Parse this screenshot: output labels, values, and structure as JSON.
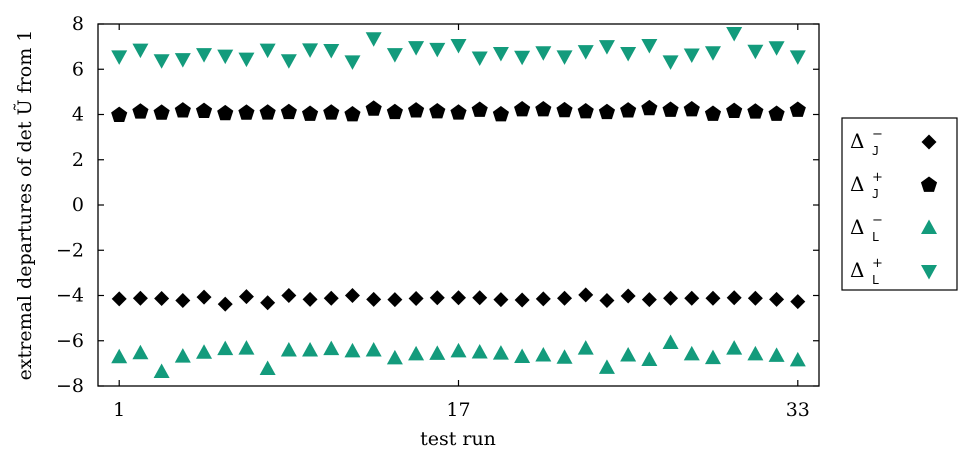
{
  "chart_data": {
    "type": "scatter",
    "xlabel": "test run",
    "ylabel": "extremal departures of det Ũ from 1",
    "xlim": [
      0,
      34
    ],
    "ylim": [
      -8,
      8
    ],
    "xticks": [
      "1",
      "17",
      "33"
    ],
    "xtick_values": [
      1,
      17,
      33
    ],
    "yticks": [
      "−8",
      "−6",
      "−4",
      "−2",
      "0",
      "2",
      "4",
      "6",
      "8"
    ],
    "ytick_values": [
      -8,
      -6,
      -4,
      -2,
      0,
      2,
      4,
      6,
      8
    ],
    "grid": false,
    "legend_position": "right",
    "x": [
      1,
      2,
      3,
      4,
      5,
      6,
      7,
      8,
      9,
      10,
      11,
      12,
      13,
      14,
      15,
      16,
      17,
      18,
      19,
      20,
      21,
      22,
      23,
      24,
      25,
      26,
      27,
      28,
      29,
      30,
      31,
      32,
      33
    ],
    "series": [
      {
        "name": "Δ_J^−",
        "legend_base": "Δ",
        "legend_sub": "J",
        "legend_sup": "−",
        "marker": "diamond",
        "color": "#000000",
        "values": [
          -4.15,
          -4.12,
          -4.13,
          -4.22,
          -4.07,
          -4.38,
          -4.05,
          -4.32,
          -4.0,
          -4.17,
          -4.12,
          -4.0,
          -4.17,
          -4.18,
          -4.13,
          -4.1,
          -4.1,
          -4.1,
          -4.18,
          -4.2,
          -4.15,
          -4.12,
          -3.97,
          -4.22,
          -4.02,
          -4.18,
          -4.12,
          -4.12,
          -4.12,
          -4.1,
          -4.12,
          -4.17,
          -4.27
        ]
      },
      {
        "name": "Δ_J^+",
        "legend_base": "Δ",
        "legend_sub": "J",
        "legend_sup": "+",
        "marker": "pentagon",
        "color": "#000000",
        "values": [
          3.97,
          4.12,
          4.07,
          4.17,
          4.15,
          4.05,
          4.07,
          4.08,
          4.1,
          4.02,
          4.08,
          4.0,
          4.25,
          4.1,
          4.17,
          4.13,
          4.08,
          4.2,
          4.0,
          4.22,
          4.22,
          4.18,
          4.13,
          4.1,
          4.17,
          4.27,
          4.2,
          4.22,
          4.02,
          4.15,
          4.12,
          4.02,
          4.2
        ]
      },
      {
        "name": "Δ_L^−",
        "legend_base": "Δ",
        "legend_sub": "L",
        "legend_sup": "−",
        "marker": "triangle-up",
        "color": "#139b7c",
        "values": [
          -6.73,
          -6.55,
          -7.38,
          -6.7,
          -6.53,
          -6.37,
          -6.35,
          -7.25,
          -6.43,
          -6.43,
          -6.37,
          -6.47,
          -6.43,
          -6.78,
          -6.6,
          -6.58,
          -6.47,
          -6.52,
          -6.57,
          -6.72,
          -6.65,
          -6.75,
          -6.35,
          -7.2,
          -6.65,
          -6.85,
          -6.1,
          -6.6,
          -6.77,
          -6.35,
          -6.6,
          -6.67,
          -6.87
        ]
      },
      {
        "name": "Δ_L^+",
        "legend_base": "Δ",
        "legend_sub": "L",
        "legend_sup": "+",
        "marker": "triangle-down",
        "color": "#139b7c",
        "values": [
          6.57,
          6.87,
          6.4,
          6.45,
          6.67,
          6.6,
          6.47,
          6.87,
          6.4,
          6.88,
          6.85,
          6.35,
          7.37,
          6.67,
          6.98,
          6.9,
          7.07,
          6.52,
          6.72,
          6.55,
          6.75,
          6.57,
          6.8,
          7.02,
          6.72,
          7.07,
          6.35,
          6.65,
          6.75,
          7.6,
          6.82,
          6.97,
          6.57
        ]
      }
    ]
  }
}
